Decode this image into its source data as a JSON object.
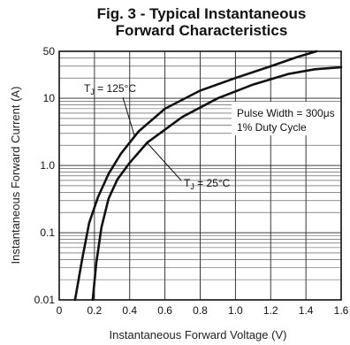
{
  "chart_data": {
    "type": "line",
    "title": [
      "Fig. 3 - Typical Instantaneous",
      "Forward Characteristics"
    ],
    "xlabel": "Instantaneous Forward Voltage (V)",
    "ylabel": "Instantaneous Forward Current (A)",
    "xlim": [
      0,
      1.6
    ],
    "ylim": [
      0.01,
      50
    ],
    "yscale": "log",
    "x_ticks": [
      "0",
      "0.2",
      "0.4",
      "0.6",
      "0.8",
      "1.0",
      "1.2",
      "1.4",
      "1.6"
    ],
    "y_ticks": [
      "0.01",
      "0.1",
      "1.0",
      "10",
      "50"
    ],
    "grid": true,
    "series": [
      {
        "name": "TJ = 125°C",
        "label_main": "T",
        "label_sub": "J",
        "label_rest": " = 125°C",
        "points": [
          [
            0.09,
            0.01
          ],
          [
            0.13,
            0.04
          ],
          [
            0.17,
            0.14
          ],
          [
            0.22,
            0.34
          ],
          [
            0.28,
            0.75
          ],
          [
            0.35,
            1.5
          ],
          [
            0.45,
            3.2
          ],
          [
            0.6,
            7.0
          ],
          [
            0.8,
            13
          ],
          [
            1.0,
            20
          ],
          [
            1.2,
            30
          ],
          [
            1.35,
            41
          ],
          [
            1.46,
            50
          ]
        ]
      },
      {
        "name": "TJ = 25°C",
        "label_main": "T",
        "label_sub": "J",
        "label_rest": " = 25°C",
        "points": [
          [
            0.19,
            0.01
          ],
          [
            0.21,
            0.035
          ],
          [
            0.24,
            0.12
          ],
          [
            0.28,
            0.32
          ],
          [
            0.33,
            0.62
          ],
          [
            0.4,
            1.1
          ],
          [
            0.5,
            2.2
          ],
          [
            0.7,
            5.3
          ],
          [
            0.9,
            10
          ],
          [
            1.1,
            16
          ],
          [
            1.3,
            23
          ],
          [
            1.45,
            27
          ],
          [
            1.6,
            29
          ]
        ]
      }
    ],
    "annotations": [
      "Pulse Width = 300μs",
      "1% Duty Cycle"
    ]
  }
}
